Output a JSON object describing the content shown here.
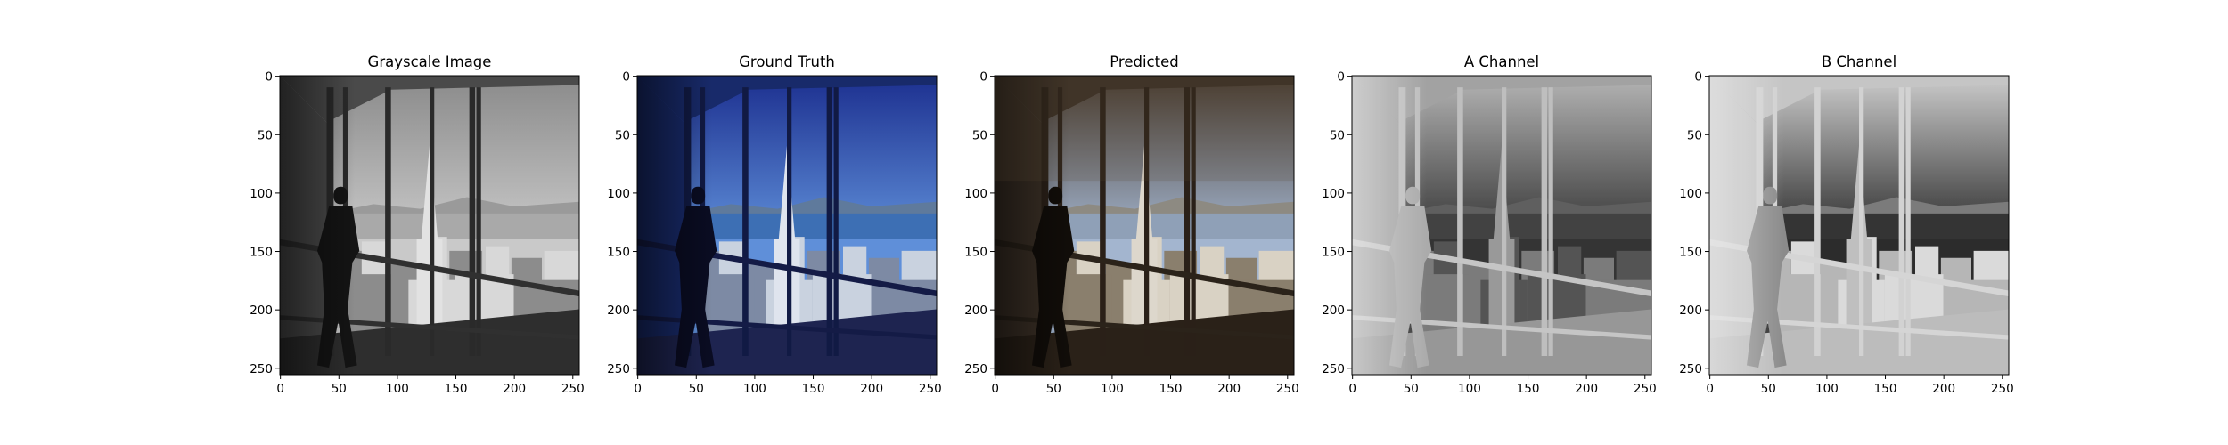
{
  "figure": {
    "panels": [
      {
        "key": "gray",
        "title": "Grayscale Image",
        "mode": "gray"
      },
      {
        "key": "gt",
        "title": "Ground Truth",
        "mode": "truth"
      },
      {
        "key": "pred",
        "title": "Predicted",
        "mode": "pred"
      },
      {
        "key": "achan",
        "title": "A Channel",
        "mode": "achan"
      },
      {
        "key": "bchan",
        "title": "B Channel",
        "mode": "bchan"
      }
    ],
    "x_ticks": [
      "0",
      "50",
      "100",
      "150",
      "200",
      "250"
    ],
    "y_ticks": [
      "0",
      "50",
      "100",
      "150",
      "200",
      "250"
    ],
    "scene": "office window overlooking San Francisco skyline with a tall pyramid-shaped tower and a silhouetted person walking"
  },
  "chart_data": {
    "type": "image_grid",
    "panel_titles": [
      "Grayscale Image",
      "Ground Truth",
      "Predicted",
      "A Channel",
      "B Channel"
    ],
    "xlim": [
      0,
      256
    ],
    "ylim": [
      256,
      0
    ],
    "x_tick_values": [
      0,
      50,
      100,
      150,
      200,
      250
    ],
    "y_tick_values": [
      0,
      50,
      100,
      150,
      200,
      250
    ]
  }
}
